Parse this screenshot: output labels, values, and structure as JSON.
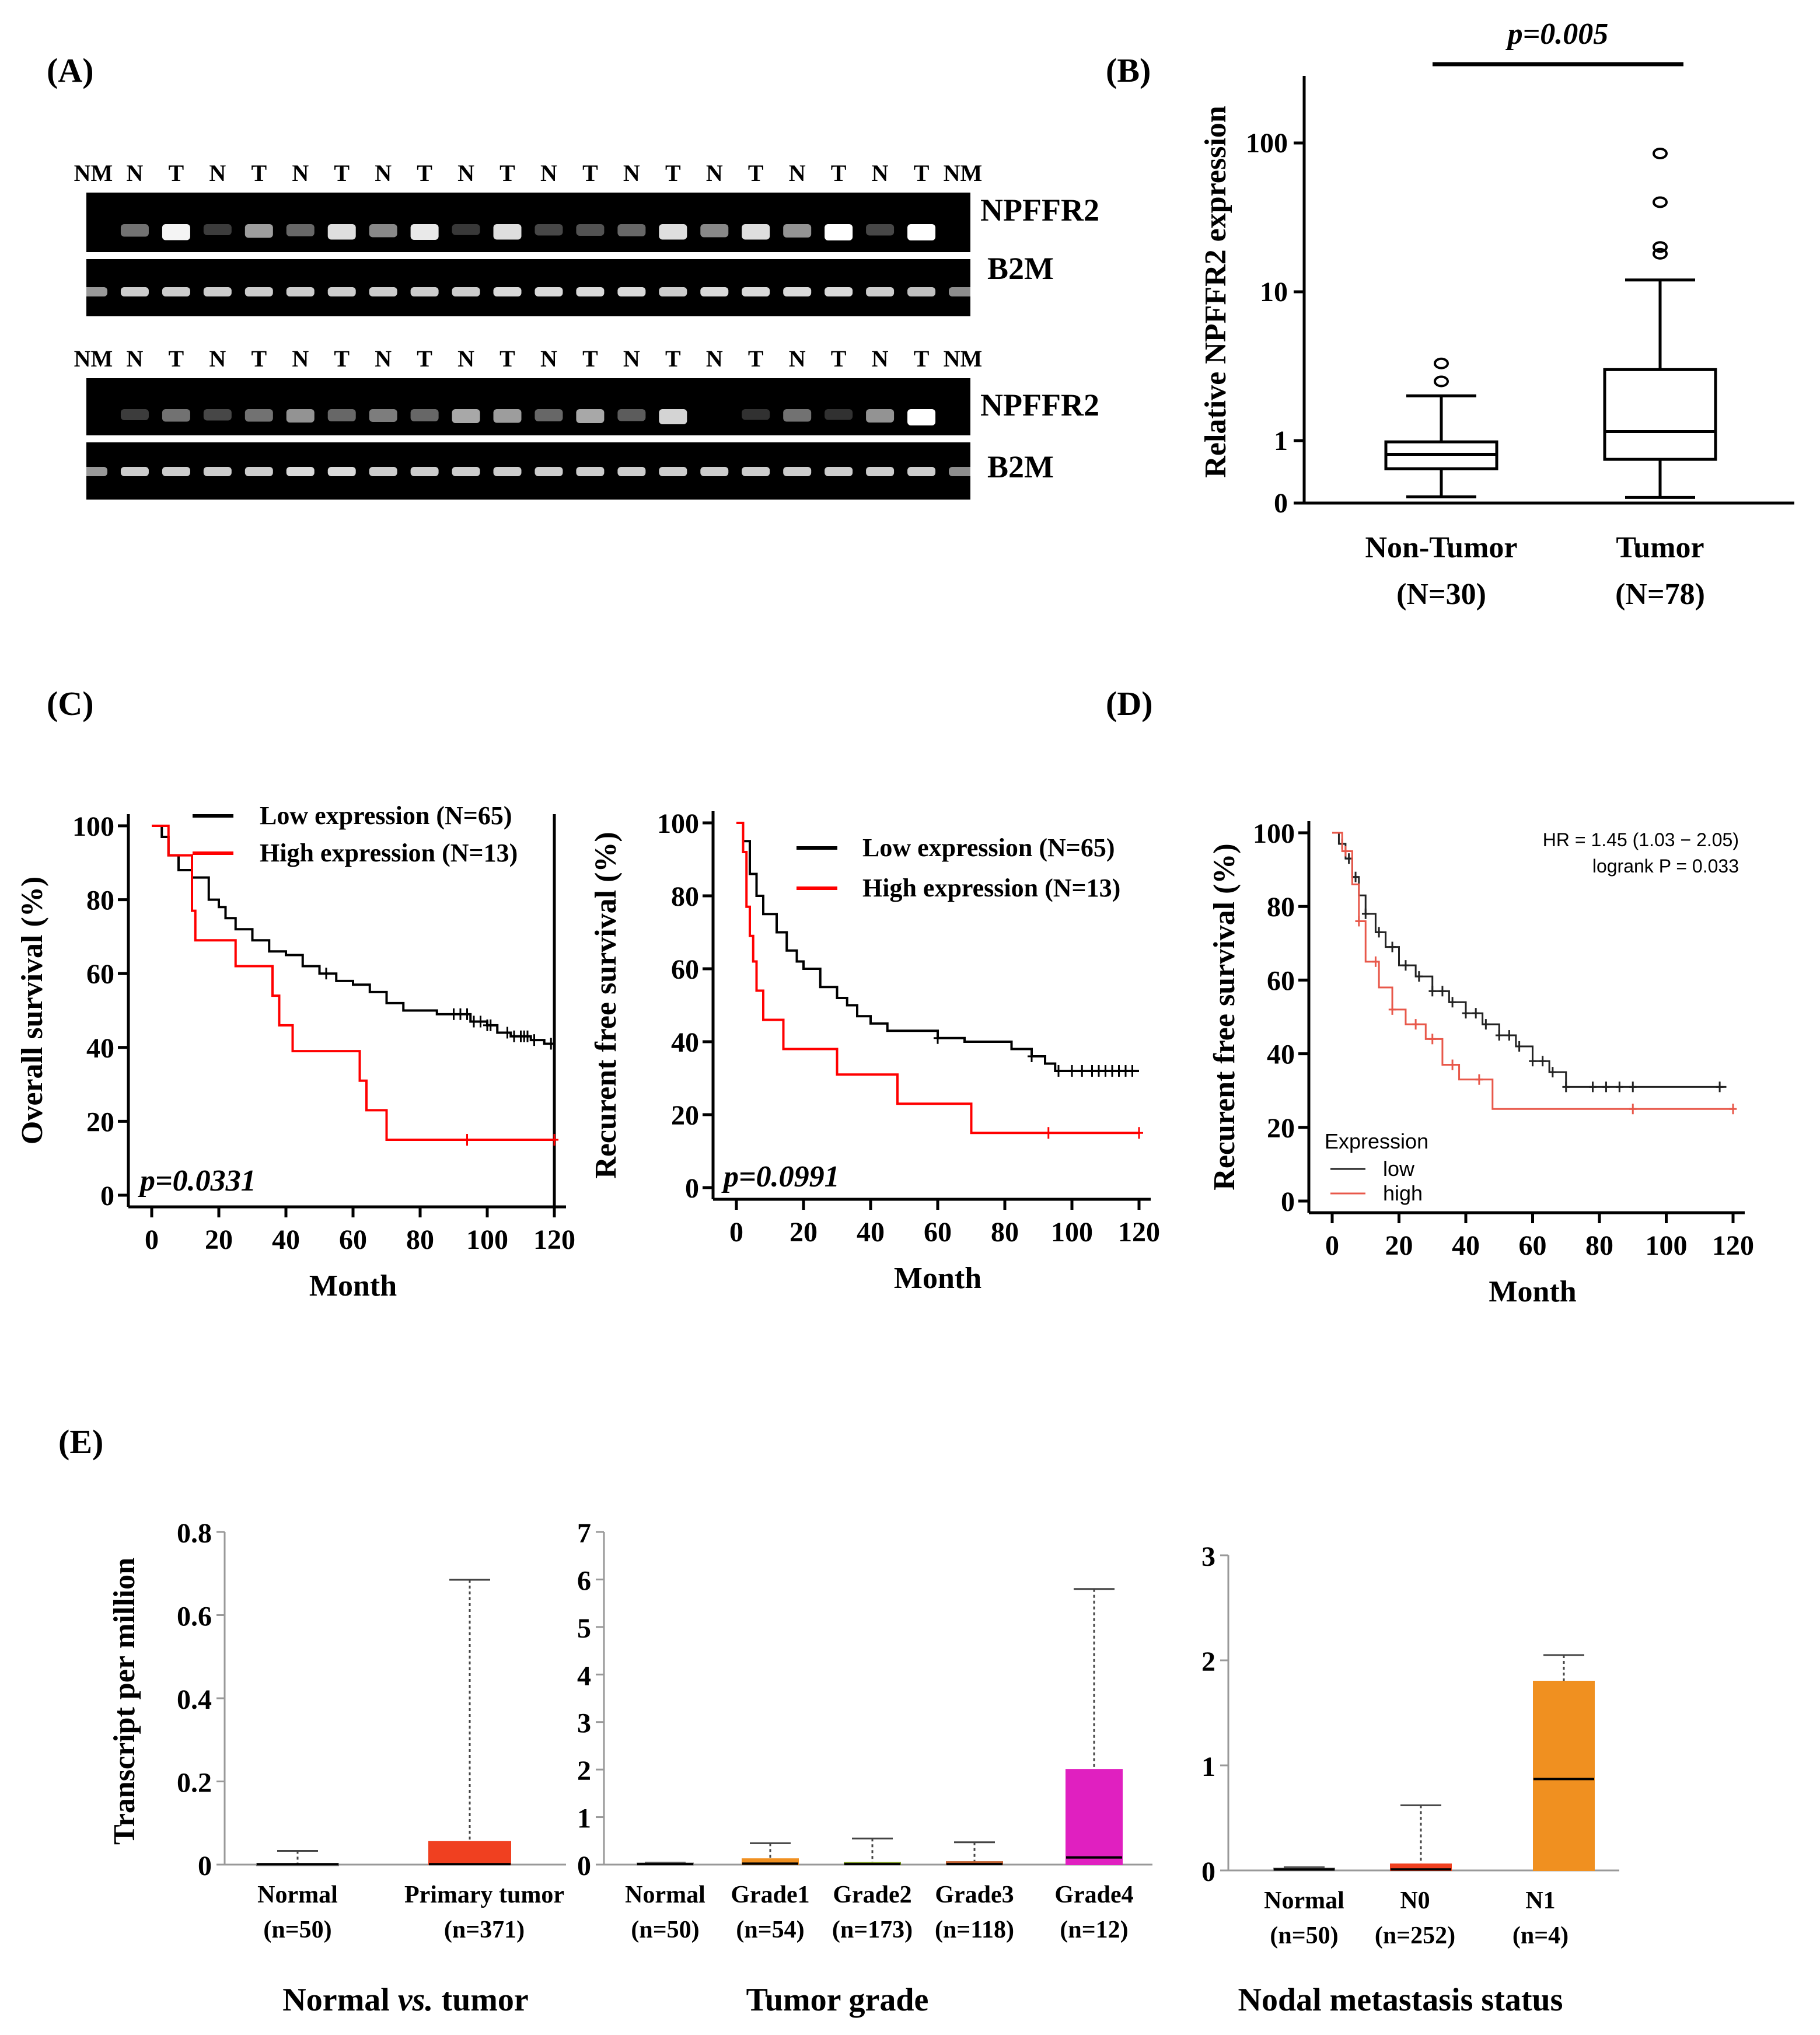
{
  "panel_labels": {
    "A": "(A)",
    "B": "(B)",
    "C": "(C)",
    "D": "(D)",
    "E": "(E)"
  },
  "gel": {
    "block1": {
      "lanes": [
        "NM",
        "N",
        "T",
        "N",
        "T",
        "N",
        "T",
        "N",
        "T",
        "N",
        "T",
        "N",
        "T",
        "N",
        "T",
        "N",
        "T",
        "N",
        "T",
        "N",
        "T",
        "NM"
      ],
      "npffr2_intensity": [
        0,
        0.35,
        0.95,
        0.1,
        0.55,
        0.3,
        0.85,
        0.45,
        0.9,
        0.08,
        0.85,
        0.15,
        0.2,
        0.3,
        0.85,
        0.45,
        0.85,
        0.5,
        1.0,
        0.15,
        1.0,
        0
      ],
      "b2m_intensity": [
        0.6,
        0.8,
        0.8,
        0.8,
        0.8,
        0.8,
        0.8,
        0.8,
        0.8,
        0.8,
        0.85,
        0.85,
        0.85,
        0.85,
        0.8,
        0.85,
        0.85,
        0.85,
        0.85,
        0.8,
        0.75,
        0.55
      ]
    },
    "block2": {
      "lanes": [
        "NM",
        "N",
        "T",
        "N",
        "T",
        "N",
        "T",
        "N",
        "T",
        "N",
        "T",
        "N",
        "T",
        "N",
        "T",
        "N",
        "T",
        "N",
        "T",
        "N",
        "T",
        "NM"
      ],
      "npffr2_intensity": [
        0,
        0.1,
        0.35,
        0.15,
        0.35,
        0.5,
        0.3,
        0.4,
        0.3,
        0.6,
        0.55,
        0.3,
        0.6,
        0.25,
        0.8,
        0,
        0.05,
        0.35,
        0.05,
        0.5,
        1.0,
        0
      ],
      "b2m_intensity": [
        0.6,
        0.8,
        0.8,
        0.8,
        0.8,
        0.85,
        0.85,
        0.8,
        0.8,
        0.8,
        0.8,
        0.8,
        0.8,
        0.8,
        0.8,
        0.8,
        0.8,
        0.8,
        0.8,
        0.8,
        0.8,
        0.55
      ]
    },
    "gene_labels": {
      "npffr2": "NPFFR2",
      "b2m": "B2M"
    }
  },
  "chart_data": [
    {
      "id": "B",
      "type": "box",
      "ylabel": "Relative NPFFR2 expression",
      "y_ticks": [
        "100",
        "10",
        "1",
        "0"
      ],
      "categories": [
        "Non-Tumor",
        "Tumor"
      ],
      "category_counts": [
        "(N=30)",
        "(N=78)"
      ],
      "boxes": [
        {
          "min": 0.1,
          "q1": 0.55,
          "median": 0.78,
          "q3": 0.98,
          "max": 2.0,
          "outliers": [
            3.3,
            2.5
          ]
        },
        {
          "min": 0.09,
          "q1": 0.7,
          "median": 1.15,
          "q3": 3.0,
          "max": 12.0,
          "outliers": [
            85,
            40,
            20,
            18
          ]
        }
      ],
      "annotation": "p=0.005"
    },
    {
      "id": "C1",
      "type": "line",
      "ylabel": "Overall survival (%)",
      "xlabel": "Month",
      "x_ticks": [
        "0",
        "20",
        "40",
        "60",
        "80",
        "100",
        "120"
      ],
      "y_ticks": [
        "0",
        "20",
        "40",
        "60",
        "80",
        "100"
      ],
      "xlim": [
        0,
        120
      ],
      "ylim": [
        0,
        100
      ],
      "series": [
        {
          "name": "Low expression  (N=65)",
          "color": "#000000",
          "steps": [
            [
              0,
              100
            ],
            [
              3,
              97
            ],
            [
              5,
              92
            ],
            [
              8,
              88
            ],
            [
              12,
              86
            ],
            [
              17,
              80
            ],
            [
              20,
              78
            ],
            [
              22,
              75
            ],
            [
              25,
              72
            ],
            [
              30,
              69
            ],
            [
              35,
              66
            ],
            [
              40,
              65
            ],
            [
              45,
              62
            ],
            [
              50,
              60
            ],
            [
              55,
              58
            ],
            [
              60,
              57
            ],
            [
              65,
              55
            ],
            [
              70,
              52
            ],
            [
              75,
              50
            ],
            [
              85,
              49
            ],
            [
              95,
              47
            ],
            [
              100,
              46
            ],
            [
              103,
              44
            ],
            [
              107,
              43
            ],
            [
              113,
              42
            ],
            [
              117,
              41
            ],
            [
              120,
              41
            ]
          ],
          "censor_x": [
            52,
            90,
            92,
            94,
            96,
            98,
            100,
            101,
            106,
            108,
            110,
            111,
            112,
            114,
            119
          ]
        },
        {
          "name": "High expression (N=13)",
          "color": "#ff0000",
          "steps": [
            [
              0,
              100
            ],
            [
              5,
              92
            ],
            [
              11,
              92
            ],
            [
              12,
              77
            ],
            [
              13,
              69
            ],
            [
              25,
              62
            ],
            [
              36,
              54
            ],
            [
              38,
              46
            ],
            [
              42,
              39
            ],
            [
              62,
              31
            ],
            [
              64,
              23
            ],
            [
              70,
              15
            ],
            [
              120,
              15
            ]
          ],
          "censor_x": [
            94,
            120
          ]
        }
      ],
      "annotation": "p=0.0331"
    },
    {
      "id": "C2",
      "type": "line",
      "ylabel": "Recurent  free  survival  (%)",
      "xlabel": "Month",
      "x_ticks": [
        "0",
        "20",
        "40",
        "60",
        "80",
        "100",
        "120"
      ],
      "y_ticks": [
        "0",
        "20",
        "40",
        "60",
        "80",
        "100"
      ],
      "xlim": [
        0,
        120
      ],
      "ylim": [
        0,
        100
      ],
      "series": [
        {
          "name": "Low expression  (N=65)",
          "color": "#000000",
          "steps": [
            [
              0,
              100
            ],
            [
              2,
              95
            ],
            [
              4,
              86
            ],
            [
              6,
              80
            ],
            [
              8,
              75
            ],
            [
              12,
              70
            ],
            [
              15,
              65
            ],
            [
              18,
              62
            ],
            [
              20,
              60
            ],
            [
              25,
              55
            ],
            [
              30,
              52
            ],
            [
              33,
              50
            ],
            [
              36,
              47
            ],
            [
              40,
              45
            ],
            [
              45,
              43
            ],
            [
              60,
              41
            ],
            [
              68,
              40
            ],
            [
              82,
              38
            ],
            [
              88,
              36
            ],
            [
              92,
              34
            ],
            [
              95,
              32
            ],
            [
              120,
              32
            ]
          ],
          "censor_x": [
            60,
            88,
            96,
            100,
            103,
            106,
            108,
            110,
            112,
            114,
            116,
            118
          ]
        },
        {
          "name": "High expression (N=13)",
          "color": "#ff0000",
          "steps": [
            [
              0,
              100
            ],
            [
              2,
              92
            ],
            [
              3,
              77
            ],
            [
              4,
              69
            ],
            [
              5,
              62
            ],
            [
              6,
              54
            ],
            [
              8,
              46
            ],
            [
              14,
              38
            ],
            [
              30,
              31
            ],
            [
              48,
              23
            ],
            [
              70,
              15
            ],
            [
              120,
              15
            ]
          ],
          "censor_x": [
            93,
            120
          ]
        }
      ],
      "annotation": "p=0.0991"
    },
    {
      "id": "D",
      "type": "line",
      "ylabel": "Recurent  free  survival  (%)",
      "xlabel": "Month",
      "x_ticks": [
        "0",
        "20",
        "40",
        "60",
        "80",
        "100",
        "120"
      ],
      "y_ticks": [
        "0",
        "20",
        "40",
        "60",
        "80",
        "100"
      ],
      "xlim": [
        0,
        120
      ],
      "ylim": [
        0,
        100
      ],
      "legend_title": "Expression",
      "hr_text": "HR = 1.45 (1.03 − 2.05)",
      "logrank_text": "logrank P = 0.033",
      "series": [
        {
          "name": "low",
          "color": "#222222",
          "steps": [
            [
              0,
              100
            ],
            [
              2,
              97
            ],
            [
              4,
              93
            ],
            [
              6,
              88
            ],
            [
              8,
              83
            ],
            [
              10,
              78
            ],
            [
              13,
              73
            ],
            [
              16,
              69
            ],
            [
              20,
              64
            ],
            [
              25,
              61
            ],
            [
              30,
              57
            ],
            [
              35,
              54
            ],
            [
              40,
              51
            ],
            [
              45,
              48
            ],
            [
              50,
              45
            ],
            [
              55,
              42
            ],
            [
              60,
              38
            ],
            [
              65,
              35
            ],
            [
              70,
              31
            ],
            [
              118,
              31
            ]
          ],
          "censor_x": [
            3,
            5,
            7,
            10,
            14,
            18,
            22,
            26,
            30,
            33,
            36,
            40,
            43,
            46,
            50,
            53,
            56,
            60,
            63,
            66,
            70,
            78,
            82,
            86,
            90,
            116
          ]
        },
        {
          "name": "high",
          "color": "#e8584a",
          "steps": [
            [
              0,
              100
            ],
            [
              3,
              95
            ],
            [
              6,
              86
            ],
            [
              8,
              76
            ],
            [
              10,
              65
            ],
            [
              14,
              58
            ],
            [
              18,
              52
            ],
            [
              22,
              48
            ],
            [
              28,
              44
            ],
            [
              33,
              37
            ],
            [
              38,
              33
            ],
            [
              47,
              33
            ],
            [
              48,
              25
            ],
            [
              120,
              25
            ]
          ],
          "censor_x": [
            4,
            8,
            13,
            18,
            25,
            30,
            36,
            44,
            90,
            120
          ]
        }
      ]
    },
    {
      "id": "E1",
      "type": "box",
      "ylabel": "Transcript  per million",
      "y_ticks": [
        "0",
        "0.2",
        "0.4",
        "0.6",
        "0.8"
      ],
      "ylim": [
        0,
        0.8
      ],
      "group_title_before": "Normal ",
      "group_title_italic": "vs.",
      "group_title_after": " tumor",
      "categories": [
        "Normal",
        "Primary tumor"
      ],
      "category_counts": [
        "(n=50)",
        "(n=371)"
      ],
      "boxes": [
        {
          "min": 0,
          "q1": 0,
          "median": 0.001,
          "q3": 0.002,
          "max": 0.033,
          "color": "#ffffff"
        },
        {
          "min": 0,
          "q1": 0,
          "median": 0.001,
          "q3": 0.055,
          "max": 0.685,
          "color": "#f04020"
        }
      ]
    },
    {
      "id": "E2",
      "type": "box",
      "y_ticks": [
        "0",
        "1",
        "2",
        "3",
        "4",
        "5",
        "6",
        "7"
      ],
      "ylim": [
        0,
        7
      ],
      "group_title": "Tumor grade",
      "categories": [
        "Normal",
        "Grade1",
        "Grade2",
        "Grade3",
        "Grade4"
      ],
      "category_counts": [
        "(n=50)",
        "(n=54)",
        "(n=173)",
        "(n=118)",
        "(n=12)"
      ],
      "boxes": [
        {
          "min": 0,
          "q1": 0,
          "median": 0.01,
          "q3": 0.03,
          "max": 0.04,
          "color": "#ffffff"
        },
        {
          "min": 0,
          "q1": 0,
          "median": 0.02,
          "q3": 0.12,
          "max": 0.45,
          "color": "#f09020"
        },
        {
          "min": 0,
          "q1": 0,
          "median": 0.01,
          "q3": 0.04,
          "max": 0.55,
          "color": "#7a9a20"
        },
        {
          "min": 0,
          "q1": 0,
          "median": 0.01,
          "q3": 0.06,
          "max": 0.47,
          "color": "#c06030"
        },
        {
          "min": 0,
          "q1": 0,
          "median": 0.15,
          "q3": 2.0,
          "max": 5.8,
          "color": "#e020c0"
        }
      ]
    },
    {
      "id": "E3",
      "type": "box",
      "y_ticks": [
        "0",
        "1",
        "2",
        "3"
      ],
      "ylim": [
        0,
        3
      ],
      "group_title": "Nodal metastasis status",
      "categories": [
        "Normal",
        "N0",
        "N1"
      ],
      "category_counts": [
        "(n=50)",
        "(n=252)",
        "(n=4)"
      ],
      "boxes": [
        {
          "min": 0,
          "q1": 0,
          "median": 0.01,
          "q3": 0.02,
          "max": 0.03,
          "color": "#ffffff"
        },
        {
          "min": 0,
          "q1": 0,
          "median": 0.01,
          "q3": 0.06,
          "max": 0.62,
          "color": "#f04020"
        },
        {
          "min": 0,
          "q1": 0,
          "median": 0.87,
          "q3": 1.8,
          "max": 2.05,
          "color": "#f09020"
        }
      ]
    }
  ]
}
